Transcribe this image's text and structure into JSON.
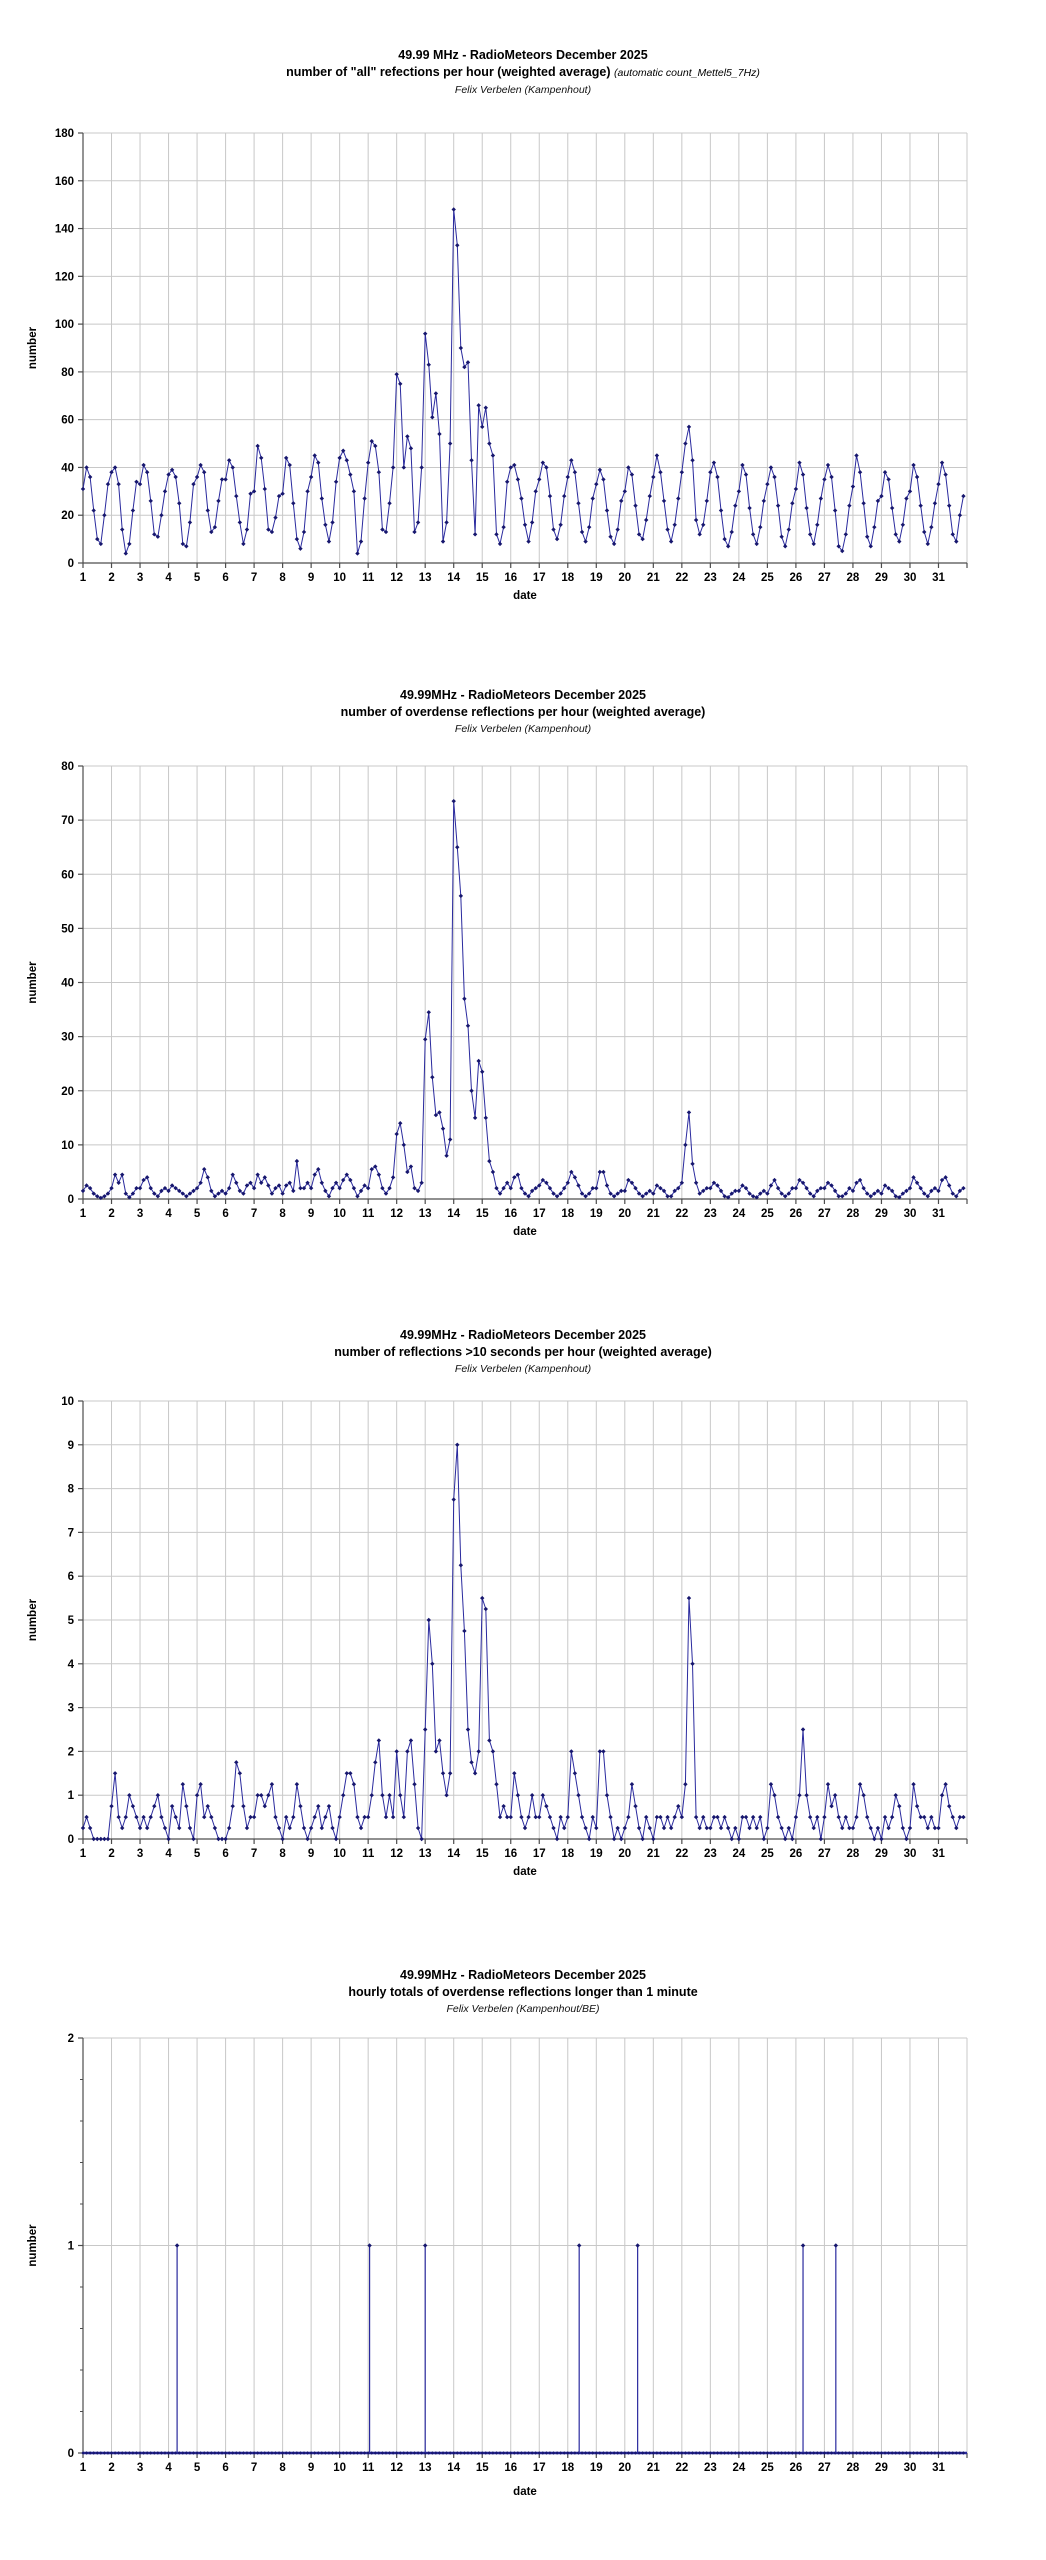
{
  "colors": {
    "line": "#2A2A9E",
    "marker": "#17176E",
    "grid": "#c8c8c8",
    "axis": "#4d4d4d",
    "background": "#ffffff"
  },
  "chart_data": [
    {
      "type": "line",
      "title": "49.99 MHz - RadioMeteors December 2025",
      "subtitle": "number of \"all\" refections per hour (weighted average)",
      "subtitle_note": "(automatic count_Mettel5_7Hz)",
      "credit": "Felix Verbelen (Kampenhout)",
      "xlabel": "date",
      "ylabel": "number",
      "ylim": [
        0,
        180
      ],
      "ytick_step": 20,
      "xtick_labels": [
        1,
        2,
        3,
        4,
        5,
        6,
        7,
        8,
        9,
        10,
        11,
        12,
        13,
        14,
        15,
        16,
        17,
        18,
        19,
        20,
        21,
        22,
        23,
        24,
        25,
        26,
        27,
        28,
        29,
        30,
        31
      ],
      "grid": true,
      "legend": "none",
      "start_day": 1,
      "values_per_day": 8,
      "values": [
        31,
        40,
        36,
        22,
        10,
        8,
        20,
        33,
        38,
        40,
        33,
        14,
        4,
        8,
        22,
        34,
        33,
        41,
        38,
        26,
        12,
        11,
        20,
        30,
        37,
        39,
        36,
        25,
        8,
        7,
        17,
        33,
        36,
        41,
        38,
        22,
        13,
        15,
        26,
        35,
        35,
        43,
        40,
        28,
        17,
        8,
        14,
        29,
        30,
        49,
        44,
        31,
        14,
        13,
        19,
        28,
        29,
        44,
        41,
        25,
        10,
        6,
        13,
        30,
        36,
        45,
        42,
        27,
        16,
        9,
        17,
        34,
        44,
        47,
        43,
        37,
        30,
        4,
        9,
        27,
        42,
        51,
        49,
        38,
        14,
        13,
        25,
        40,
        79,
        75,
        40,
        53,
        48,
        13,
        17,
        40,
        96,
        83,
        61,
        71,
        54,
        9,
        17,
        50,
        148,
        133,
        90,
        82,
        84,
        43,
        12,
        66,
        57,
        65,
        50,
        45,
        12,
        8,
        15,
        34,
        40,
        41,
        35,
        27,
        16,
        9,
        17,
        30,
        35,
        42,
        40,
        28,
        14,
        10,
        16,
        28,
        36,
        43,
        38,
        25,
        13,
        9,
        15,
        27,
        33,
        39,
        35,
        22,
        11,
        8,
        14,
        26,
        30,
        40,
        37,
        24,
        12,
        10,
        18,
        28,
        36,
        45,
        38,
        26,
        14,
        9,
        16,
        27,
        38,
        50,
        57,
        43,
        18,
        12,
        16,
        26,
        38,
        42,
        36,
        22,
        10,
        7,
        13,
        24,
        30,
        41,
        37,
        23,
        12,
        8,
        15,
        26,
        33,
        40,
        36,
        24,
        11,
        7,
        14,
        25,
        31,
        42,
        37,
        23,
        12,
        8,
        16,
        27,
        35,
        41,
        36,
        22,
        7,
        5,
        12,
        24,
        32,
        45,
        38,
        25,
        11,
        7,
        15,
        26,
        28,
        38,
        35,
        23,
        12,
        9,
        16,
        27,
        30,
        41,
        36,
        24,
        13,
        8,
        15,
        25,
        33,
        42,
        37,
        24,
        12,
        9,
        20,
        28
      ]
    },
    {
      "type": "line",
      "title": "49.99MHz - RadioMeteors December 2025",
      "subtitle": "number of overdense reflections per hour (weighted average)",
      "subtitle_note": "",
      "credit": "Felix Verbelen (Kampenhout)",
      "xlabel": "date",
      "ylabel": "number",
      "ylim": [
        0,
        80
      ],
      "ytick_step": 10,
      "xtick_labels": [
        1,
        2,
        3,
        4,
        5,
        6,
        7,
        8,
        9,
        10,
        11,
        12,
        13,
        14,
        15,
        16,
        17,
        18,
        19,
        20,
        21,
        22,
        23,
        24,
        25,
        26,
        27,
        28,
        29,
        30,
        31
      ],
      "grid": true,
      "legend": "none",
      "start_day": 1,
      "values_per_day": 8,
      "values": [
        1.5,
        2.5,
        2,
        1,
        0.5,
        0.2,
        0.5,
        1,
        2,
        4.5,
        3,
        4.5,
        1,
        0.3,
        1,
        2,
        2,
        3.5,
        4,
        2,
        1,
        0.5,
        1.5,
        2,
        1.5,
        2.5,
        2,
        1.5,
        1,
        0.5,
        1,
        1.5,
        2,
        3,
        5.5,
        4,
        1.5,
        0.5,
        1,
        1.5,
        1,
        2,
        4.5,
        3,
        1.5,
        1,
        2.5,
        3,
        2,
        4.5,
        3,
        4,
        2.5,
        1,
        2,
        2.5,
        1,
        2.5,
        3,
        1.5,
        7,
        2,
        2,
        3,
        2,
        4.5,
        5.5,
        3,
        1.5,
        0.5,
        2,
        3,
        2,
        3.5,
        4.5,
        3.5,
        2,
        0.5,
        1.5,
        2.5,
        2,
        5.5,
        6,
        4.5,
        2,
        1,
        2,
        4,
        12,
        14,
        10,
        5,
        6,
        2,
        1.5,
        3,
        29.5,
        34.5,
        22.5,
        15.5,
        16,
        13,
        8,
        11,
        73.5,
        65,
        56,
        37,
        32,
        20,
        15,
        25.5,
        23.5,
        15,
        7,
        5,
        2,
        1,
        2,
        3,
        2,
        4,
        4.5,
        2,
        1,
        0.5,
        1.5,
        2,
        2.5,
        3.5,
        3,
        2,
        1,
        0.5,
        1,
        2,
        3,
        5,
        4,
        2.5,
        1,
        0.5,
        1,
        2,
        2,
        5,
        5,
        2.5,
        1,
        0.5,
        1,
        1.5,
        1.5,
        3.5,
        3,
        2,
        1,
        0.5,
        1,
        1.5,
        1,
        2.5,
        2,
        1.5,
        0.5,
        0.5,
        1.5,
        2,
        3,
        10,
        16,
        6.5,
        3,
        1,
        1.5,
        2,
        2,
        3,
        2.5,
        1.5,
        0.5,
        0.3,
        1,
        1.5,
        1.5,
        2.5,
        2,
        1,
        0.5,
        0.3,
        1,
        1.5,
        1,
        2.5,
        3.5,
        2,
        1,
        0.5,
        1,
        2,
        2,
        3.5,
        3,
        2,
        1,
        0.5,
        1.5,
        2,
        2,
        3,
        2.5,
        1.5,
        0.5,
        0.5,
        1,
        2,
        1.5,
        3,
        3.5,
        2,
        1,
        0.5,
        1,
        1.5,
        1,
        2.5,
        2,
        1.5,
        0.5,
        0.3,
        1,
        1.5,
        2,
        4,
        3,
        2,
        1,
        0.5,
        1.5,
        2,
        1.5,
        3.5,
        4,
        2.5,
        1,
        0.5,
        1.5,
        2
      ]
    },
    {
      "type": "line",
      "title": "49.99MHz - RadioMeteors December 2025",
      "subtitle": "number of reflections >10 seconds per hour (weighted average)",
      "subtitle_note": "",
      "credit": "Felix Verbelen (Kampenhout)",
      "xlabel": "date",
      "ylabel": "number",
      "ylim": [
        0,
        10
      ],
      "ytick_step": 1,
      "xtick_labels": [
        1,
        2,
        3,
        4,
        5,
        6,
        7,
        8,
        9,
        10,
        11,
        12,
        13,
        14,
        15,
        16,
        17,
        18,
        19,
        20,
        21,
        22,
        23,
        24,
        25,
        26,
        27,
        28,
        29,
        30,
        31
      ],
      "grid": true,
      "legend": "none",
      "start_day": 1,
      "values_per_day": 8,
      "values": [
        0.25,
        0.5,
        0.25,
        0,
        0,
        0,
        0,
        0,
        0.75,
        1.5,
        0.5,
        0.25,
        0.5,
        1,
        0.75,
        0.5,
        0.25,
        0.5,
        0.25,
        0.5,
        0.75,
        1,
        0.5,
        0.25,
        0,
        0.75,
        0.5,
        0.25,
        1.25,
        0.75,
        0.25,
        0,
        1,
        1.25,
        0.5,
        0.75,
        0.5,
        0.25,
        0,
        0,
        0,
        0.25,
        0.75,
        1.75,
        1.5,
        0.75,
        0.25,
        0.5,
        0.5,
        1,
        1,
        0.75,
        1,
        1.25,
        0.5,
        0.25,
        0,
        0.5,
        0.25,
        0.5,
        1.25,
        0.75,
        0.25,
        0,
        0.25,
        0.5,
        0.75,
        0.25,
        0.5,
        0.75,
        0.25,
        0,
        0.5,
        1,
        1.5,
        1.5,
        1.25,
        0.5,
        0.25,
        0.5,
        0.5,
        1,
        1.75,
        2.25,
        1,
        0.5,
        1,
        0.5,
        2,
        1,
        0.5,
        2,
        2.25,
        1.25,
        0.25,
        0,
        2.5,
        5,
        4,
        2,
        2.25,
        1.5,
        1,
        1.5,
        7.75,
        9,
        6.25,
        4.75,
        2.5,
        1.75,
        1.5,
        2,
        5.5,
        5.25,
        2.25,
        2,
        1.25,
        0.5,
        0.75,
        0.5,
        0.5,
        1.5,
        1,
        0.5,
        0.25,
        0.5,
        1,
        0.5,
        0.5,
        1,
        0.75,
        0.5,
        0.25,
        0,
        0.5,
        0.25,
        0.5,
        2,
        1.5,
        1,
        0.5,
        0.25,
        0,
        0.5,
        0.25,
        2,
        2,
        1,
        0.5,
        0,
        0.25,
        0,
        0.25,
        0.5,
        1.25,
        0.75,
        0.25,
        0,
        0.5,
        0.25,
        0,
        0.5,
        0.5,
        0.25,
        0.5,
        0.25,
        0.5,
        0.75,
        0.5,
        1.25,
        5.5,
        4,
        0.5,
        0.25,
        0.5,
        0.25,
        0.25,
        0.5,
        0.5,
        0.25,
        0.5,
        0.25,
        0,
        0.25,
        0,
        0.5,
        0.5,
        0.25,
        0.5,
        0.25,
        0.5,
        0,
        0.25,
        1.25,
        1,
        0.5,
        0.25,
        0,
        0.25,
        0,
        0.5,
        1,
        2.5,
        1,
        0.5,
        0.25,
        0.5,
        0,
        0.5,
        1.25,
        0.75,
        1,
        0.5,
        0.25,
        0.5,
        0.25,
        0.25,
        0.5,
        1.25,
        1,
        0.5,
        0.25,
        0,
        0.25,
        0,
        0.5,
        0.25,
        0.5,
        1,
        0.75,
        0.25,
        0,
        0.25,
        1.25,
        0.75,
        0.5,
        0.5,
        0.25,
        0.5,
        0.25,
        0.25,
        1,
        1.25,
        0.75,
        0.5,
        0.25,
        0.5,
        0.5
      ]
    },
    {
      "type": "spike",
      "title": "49.99MHz - RadioMeteors December 2025",
      "subtitle": "hourly totals of overdense reflections longer than 1 minute",
      "subtitle_note": "",
      "credit": "Felix Verbelen (Kampenhout/BE)",
      "xlabel": "date",
      "ylabel": "number",
      "ylim": [
        0,
        2
      ],
      "ytick_step": 1,
      "xtick_labels": [
        1,
        2,
        3,
        4,
        5,
        6,
        7,
        8,
        9,
        10,
        11,
        12,
        13,
        14,
        15,
        16,
        17,
        18,
        19,
        20,
        21,
        22,
        23,
        24,
        25,
        26,
        27,
        28,
        29,
        30,
        31
      ],
      "grid": true,
      "legend": "none",
      "baseline_value": 0,
      "spikes": [
        {
          "day": 4.3,
          "value": 1
        },
        {
          "day": 11.05,
          "value": 1
        },
        {
          "day": 13.0,
          "value": 1
        },
        {
          "day": 18.4,
          "value": 1
        },
        {
          "day": 20.45,
          "value": 1
        },
        {
          "day": 26.25,
          "value": 1
        },
        {
          "day": 27.4,
          "value": 1
        }
      ]
    }
  ]
}
